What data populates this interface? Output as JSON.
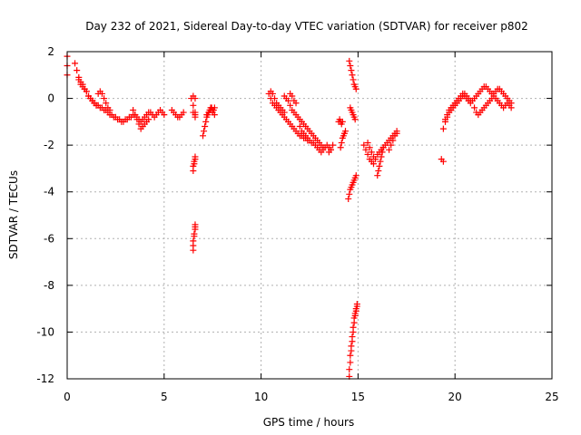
{
  "chart_data": {
    "type": "scatter",
    "title": "Day 232 of 2021, Sidereal Day-to-day VTEC variation (SDTVAR) for receiver p802",
    "xlabel": "GPS time / hours",
    "ylabel": "SDTVAR / TECUs",
    "xlim": [
      0,
      25
    ],
    "ylim": [
      -12,
      2
    ],
    "xticks": [
      0,
      5,
      10,
      15,
      20,
      25
    ],
    "yticks": [
      -12,
      -10,
      -8,
      -6,
      -4,
      -2,
      0,
      2
    ],
    "xtick_labels": [
      "0",
      "5",
      "10",
      "15",
      "20",
      "25"
    ],
    "ytick_labels": [
      "-12",
      "-10",
      "-8",
      "-6",
      "-4",
      "-2",
      "0",
      "2"
    ],
    "grid": true,
    "marker": "+",
    "color": "#ff0000",
    "series": [
      {
        "name": "SDTVAR",
        "segments": [
          {
            "x": [
              0.0,
              0.0,
              0.0
            ],
            "y": [
              1.8,
              1.4,
              1.0
            ]
          },
          {
            "x": [
              0.4,
              0.5,
              0.6,
              0.7,
              0.8,
              0.9,
              1.0,
              1.1,
              1.2,
              1.3,
              1.4,
              1.5,
              1.6,
              1.7,
              1.8,
              1.9,
              2.0,
              2.1,
              2.2,
              2.3,
              2.4,
              2.5,
              2.6,
              2.7,
              2.8,
              2.9,
              3.0,
              3.1,
              3.2,
              3.3,
              3.4,
              3.5,
              3.6,
              3.7,
              3.8,
              3.9,
              4.0,
              4.1,
              4.2,
              4.3,
              4.4,
              4.5,
              4.6,
              4.7,
              4.8,
              4.9,
              5.0
            ],
            "y": [
              1.5,
              1.2,
              0.9,
              0.7,
              0.6,
              0.4,
              0.3,
              0.1,
              0.0,
              -0.1,
              -0.2,
              -0.3,
              -0.3,
              -0.4,
              -0.4,
              -0.5,
              -0.5,
              -0.6,
              -0.7,
              -0.7,
              -0.8,
              -0.8,
              -0.9,
              -0.9,
              -1.0,
              -1.0,
              -0.9,
              -0.9,
              -0.8,
              -0.8,
              -0.7,
              -0.7,
              -0.8,
              -0.9,
              -1.0,
              -0.9,
              -0.8,
              -0.7,
              -0.6,
              -0.6,
              -0.7,
              -0.8,
              -0.7,
              -0.6,
              -0.5,
              -0.6,
              -0.7
            ]
          },
          {
            "x": [
              0.6,
              0.7,
              0.8,
              0.9,
              1.0,
              1.1,
              1.2,
              1.3,
              1.4,
              1.5
            ],
            "y": [
              0.8,
              0.6,
              0.5,
              0.4,
              0.3,
              0.1,
              0.0,
              -0.1,
              -0.2,
              -0.3
            ]
          },
          {
            "x": [
              1.6,
              1.7,
              1.8,
              1.9,
              2.0,
              2.1,
              2.2
            ],
            "y": [
              0.2,
              0.3,
              0.2,
              0.0,
              -0.2,
              -0.4,
              -0.5
            ]
          },
          {
            "x": [
              3.4,
              3.5,
              3.6,
              3.7,
              3.8,
              3.9,
              4.0,
              4.1,
              4.2
            ],
            "y": [
              -0.5,
              -0.7,
              -0.9,
              -1.1,
              -1.3,
              -1.2,
              -1.1,
              -1.0,
              -0.9
            ]
          },
          {
            "x": [
              5.4,
              5.5,
              5.6,
              5.7,
              5.8,
              5.9,
              6.0
            ],
            "y": [
              -0.5,
              -0.6,
              -0.7,
              -0.8,
              -0.8,
              -0.7,
              -0.6
            ]
          },
          {
            "x": [
              6.4,
              6.5,
              6.6
            ],
            "y": [
              0.0,
              0.1,
              0.0
            ]
          },
          {
            "x": [
              6.5,
              6.5,
              6.6,
              6.6,
              6.6
            ],
            "y": [
              -0.3,
              -0.6,
              -0.7,
              -0.8,
              -0.6
            ]
          },
          {
            "x": [
              6.5,
              6.5,
              6.55,
              6.55,
              6.6,
              6.6
            ],
            "y": [
              -3.1,
              -2.9,
              -2.8,
              -2.7,
              -2.6,
              -2.5
            ]
          },
          {
            "x": [
              6.5,
              6.5,
              6.5,
              6.55,
              6.55,
              6.6,
              6.6,
              6.6
            ],
            "y": [
              -6.5,
              -6.3,
              -6.1,
              -5.9,
              -5.8,
              -5.6,
              -5.5,
              -5.4
            ]
          },
          {
            "x": [
              7.0,
              7.05,
              7.1,
              7.15,
              7.2,
              7.25,
              7.3,
              7.35,
              7.4,
              7.45,
              7.5,
              7.55,
              7.6
            ],
            "y": [
              -1.6,
              -1.4,
              -1.2,
              -1.0,
              -0.8,
              -0.7,
              -0.6,
              -0.5,
              -0.4,
              -0.4,
              -0.5,
              -0.5,
              -0.4
            ]
          },
          {
            "x": [
              7.2,
              7.3,
              7.4,
              7.5,
              7.6
            ],
            "y": [
              -0.7,
              -0.6,
              -0.5,
              -0.6,
              -0.7
            ]
          },
          {
            "x": [
              10.4,
              10.5,
              10.6,
              10.7,
              10.8,
              10.9,
              11.0,
              11.1,
              11.2,
              11.3,
              11.4,
              11.5,
              11.6,
              11.7,
              11.8,
              11.9,
              12.0,
              12.1,
              12.2,
              12.3,
              12.4,
              12.5,
              12.6,
              12.7,
              12.8,
              12.9,
              13.0,
              13.1,
              13.2,
              13.3,
              13.4,
              13.5,
              13.6
            ],
            "y": [
              0.2,
              0.0,
              -0.2,
              -0.3,
              -0.4,
              -0.5,
              -0.6,
              -0.7,
              -0.8,
              -0.9,
              -1.0,
              -1.1,
              -1.2,
              -1.3,
              -1.4,
              -1.5,
              -1.6,
              -1.6,
              -1.7,
              -1.7,
              -1.8,
              -1.8,
              -1.9,
              -1.9,
              -2.0,
              -2.1,
              -2.2,
              -2.3,
              -2.2,
              -2.1,
              -2.0,
              -2.1,
              -2.2
            ]
          },
          {
            "x": [
              10.5,
              10.6,
              10.7,
              10.8,
              10.9,
              11.0,
              11.1,
              11.2
            ],
            "y": [
              0.3,
              0.2,
              0.0,
              -0.2,
              -0.3,
              -0.4,
              -0.5,
              -0.6
            ]
          },
          {
            "x": [
              11.2,
              11.3,
              11.4,
              11.5,
              11.6,
              11.7,
              11.8,
              11.9,
              12.0,
              12.1,
              12.2,
              12.3,
              12.4,
              12.5,
              12.6,
              12.7,
              12.8,
              12.9,
              13.0,
              13.1,
              13.2
            ],
            "y": [
              0.1,
              0.0,
              -0.1,
              -0.3,
              -0.5,
              -0.6,
              -0.7,
              -0.8,
              -0.9,
              -1.0,
              -1.1,
              -1.2,
              -1.3,
              -1.4,
              -1.5,
              -1.6,
              -1.7,
              -1.8,
              -1.9,
              -2.0,
              -2.1
            ]
          },
          {
            "x": [
              11.5,
              11.6,
              11.7,
              11.8
            ],
            "y": [
              0.2,
              0.1,
              -0.1,
              -0.2
            ]
          },
          {
            "x": [
              12.0,
              12.1,
              12.2,
              12.3,
              12.4
            ],
            "y": [
              -1.2,
              -1.4,
              -1.5,
              -1.6,
              -1.7
            ]
          },
          {
            "x": [
              13.5,
              13.6,
              13.7
            ],
            "y": [
              -2.3,
              -2.2,
              -2.0
            ]
          },
          {
            "x": [
              14.0,
              14.05,
              14.1,
              14.15,
              14.2
            ],
            "y": [
              -1.0,
              -0.9,
              -1.0,
              -1.1,
              -1.0
            ]
          },
          {
            "x": [
              14.1,
              14.15,
              14.2,
              14.25,
              14.3,
              14.35
            ],
            "y": [
              -2.1,
              -1.9,
              -1.7,
              -1.6,
              -1.5,
              -1.4
            ]
          },
          {
            "x": [
              14.55,
              14.6,
              14.65,
              14.7,
              14.75,
              14.8,
              14.85,
              14.9
            ],
            "y": [
              1.6,
              1.4,
              1.2,
              1.0,
              0.8,
              0.6,
              0.5,
              0.4
            ]
          },
          {
            "x": [
              14.6,
              14.65,
              14.7,
              14.75,
              14.8,
              14.85
            ],
            "y": [
              -0.4,
              -0.5,
              -0.6,
              -0.7,
              -0.8,
              -0.9
            ]
          },
          {
            "x": [
              14.5,
              14.55,
              14.6,
              14.65,
              14.7,
              14.75,
              14.8,
              14.85,
              14.9
            ],
            "y": [
              -4.3,
              -4.1,
              -3.9,
              -3.8,
              -3.7,
              -3.6,
              -3.5,
              -3.4,
              -3.3
            ]
          },
          {
            "x": [
              14.55,
              14.55,
              14.6,
              14.6,
              14.65,
              14.65,
              14.7,
              14.7,
              14.75,
              14.75,
              14.8,
              14.8,
              14.85,
              14.85,
              14.9,
              14.9,
              14.95,
              14.95
            ],
            "y": [
              -11.9,
              -11.6,
              -11.3,
              -11.0,
              -10.8,
              -10.6,
              -10.4,
              -10.2,
              -10.0,
              -9.8,
              -9.6,
              -9.4,
              -9.3,
              -9.2,
              -9.1,
              -9.0,
              -8.9,
              -8.8
            ]
          },
          {
            "x": [
              15.3,
              15.4,
              15.5,
              15.6,
              15.7,
              15.8,
              15.9,
              16.0,
              16.1,
              16.2,
              16.3,
              16.4,
              16.5,
              16.6,
              16.7,
              16.8,
              16.9,
              17.0
            ],
            "y": [
              -2.0,
              -2.2,
              -2.4,
              -2.6,
              -2.7,
              -2.8,
              -2.6,
              -2.4,
              -2.3,
              -2.2,
              -2.1,
              -2.0,
              -1.9,
              -1.8,
              -1.7,
              -1.6,
              -1.5,
              -1.4
            ]
          },
          {
            "x": [
              15.5,
              15.6,
              15.7,
              15.8
            ],
            "y": [
              -1.9,
              -2.1,
              -2.3,
              -2.5
            ]
          },
          {
            "x": [
              16.0,
              16.05,
              16.1,
              16.15,
              16.2,
              16.25,
              16.3
            ],
            "y": [
              -3.3,
              -3.1,
              -2.9,
              -2.7,
              -2.5,
              -2.3,
              -2.1
            ]
          },
          {
            "x": [
              16.6,
              16.7,
              16.8,
              16.9,
              17.0
            ],
            "y": [
              -2.2,
              -2.0,
              -1.8,
              -1.6,
              -1.5
            ]
          },
          {
            "x": [
              19.3,
              19.4
            ],
            "y": [
              -2.6,
              -2.7
            ]
          },
          {
            "x": [
              19.4,
              19.5,
              19.6,
              19.7,
              19.8,
              19.9,
              20.0,
              20.1,
              20.2,
              20.3,
              20.4,
              20.5,
              20.6,
              20.7,
              20.8,
              20.9,
              21.0,
              21.1,
              21.2,
              21.3,
              21.4,
              21.5,
              21.6,
              21.7,
              21.8,
              21.9,
              22.0,
              22.1,
              22.2,
              22.3,
              22.4,
              22.5,
              22.6,
              22.7,
              22.8,
              22.9
            ],
            "y": [
              -1.3,
              -1.0,
              -0.8,
              -0.6,
              -0.5,
              -0.4,
              -0.3,
              -0.2,
              -0.1,
              0.0,
              0.1,
              0.1,
              0.0,
              -0.1,
              -0.2,
              -0.1,
              0.0,
              0.1,
              0.2,
              0.3,
              0.4,
              0.5,
              0.5,
              0.4,
              0.3,
              0.2,
              0.1,
              0.0,
              -0.1,
              -0.2,
              -0.3,
              -0.4,
              -0.3,
              -0.2,
              -0.3,
              -0.4
            ]
          },
          {
            "x": [
              19.5,
              19.6,
              19.7,
              19.8,
              19.9,
              20.0,
              20.1,
              20.2,
              20.3,
              20.4,
              20.5,
              20.6,
              20.7,
              20.8
            ],
            "y": [
              -0.9,
              -0.7,
              -0.5,
              -0.4,
              -0.3,
              -0.2,
              -0.1,
              0.0,
              0.1,
              0.2,
              0.2,
              0.1,
              0.0,
              -0.1
            ]
          },
          {
            "x": [
              21.0,
              21.1,
              21.2,
              21.3,
              21.4,
              21.5,
              21.6,
              21.7,
              21.8,
              21.9,
              22.0,
              22.1,
              22.2,
              22.3,
              22.4,
              22.5,
              22.6,
              22.7,
              22.8,
              22.9
            ],
            "y": [
              -0.4,
              -0.6,
              -0.7,
              -0.6,
              -0.5,
              -0.4,
              -0.3,
              -0.2,
              -0.1,
              0.0,
              0.2,
              0.3,
              0.4,
              0.4,
              0.3,
              0.2,
              0.1,
              0.0,
              -0.1,
              -0.2
            ]
          }
        ]
      }
    ]
  }
}
